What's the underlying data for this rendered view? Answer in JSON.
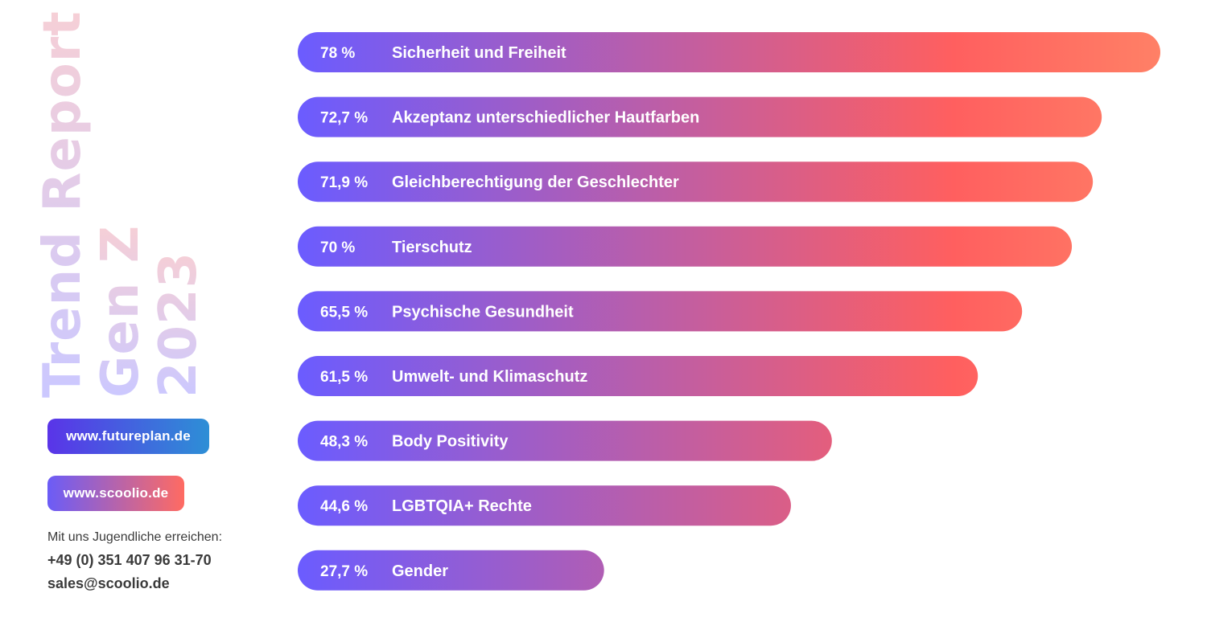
{
  "sidebar": {
    "title_lines": [
      "Trend Report",
      "Gen Z",
      "2023"
    ],
    "link_futureplan": "www.futureplan.de",
    "link_scoolio": "www.scoolio.de",
    "contact_intro": "Mit uns Jugendliche erreichen:",
    "contact_phone": "+49 (0) 351 407 96 31-70",
    "contact_email": "sales@scoolio.de"
  },
  "colors": {
    "gradient_start": "#6b5cff",
    "gradient_mid": "#ff5f5f",
    "gradient_end": "#ff8066",
    "label_text": "#ffffff"
  },
  "chart_data": {
    "type": "bar",
    "orientation": "horizontal",
    "xlim": [
      0,
      78
    ],
    "categories": [
      "Sicherheit und Freiheit",
      "Akzeptanz unterschiedlicher Hautfarben",
      "Gleichberechtigung der Geschlechter",
      "Tierschutz",
      "Psychische Gesundheit",
      "Umwelt- und Klimaschutz",
      "Body Positivity",
      "LGBTQIA+ Rechte",
      "Gender"
    ],
    "values": [
      78,
      72.7,
      71.9,
      70,
      65.5,
      61.5,
      48.3,
      44.6,
      27.7
    ],
    "value_labels": [
      "78 %",
      "72,7 %",
      "71,9 %",
      "70 %",
      "65,5 %",
      "61,5 %",
      "48,3 %",
      "44,6 %",
      "27,7 %"
    ],
    "grid": false,
    "legend": "none"
  }
}
